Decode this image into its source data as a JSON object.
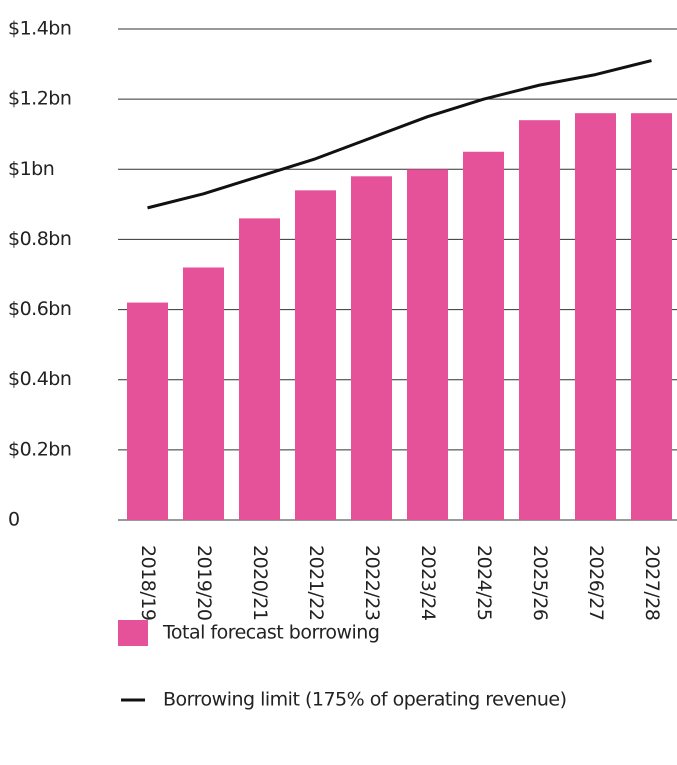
{
  "chart_data": {
    "type": "bar",
    "categories": [
      "2018/19",
      "2019/20",
      "2020/21",
      "2021/22",
      "2022/23",
      "2023/24",
      "2024/25",
      "2025/26",
      "2026/27",
      "2027/28"
    ],
    "series": [
      {
        "name": "Total forecast borrowing",
        "type": "bar",
        "color": "#e5529a",
        "values": [
          0.62,
          0.72,
          0.86,
          0.94,
          0.98,
          1.0,
          1.05,
          1.14,
          1.16,
          1.16
        ]
      },
      {
        "name": "Borrowing limit (175% of operating revenue)",
        "type": "line",
        "color": "#111111",
        "values": [
          0.89,
          0.93,
          0.98,
          1.03,
          1.09,
          1.15,
          1.2,
          1.24,
          1.27,
          1.31
        ]
      }
    ],
    "ylim": [
      0,
      1.4
    ],
    "yticks": [
      0,
      {
        "value": 0.2,
        "label": "$0.2bn"
      },
      {
        "value": 0.4,
        "label": "$0.4bn"
      },
      {
        "value": 0.6,
        "label": "$0.6bn"
      },
      {
        "value": 0.8,
        "label": "$0.8bn"
      },
      {
        "value": 1,
        "label": "$1bn"
      },
      {
        "value": 1.2,
        "label": "$1.2bn"
      },
      {
        "value": 1.4,
        "label": "$1.4bn"
      }
    ],
    "grid": true
  }
}
